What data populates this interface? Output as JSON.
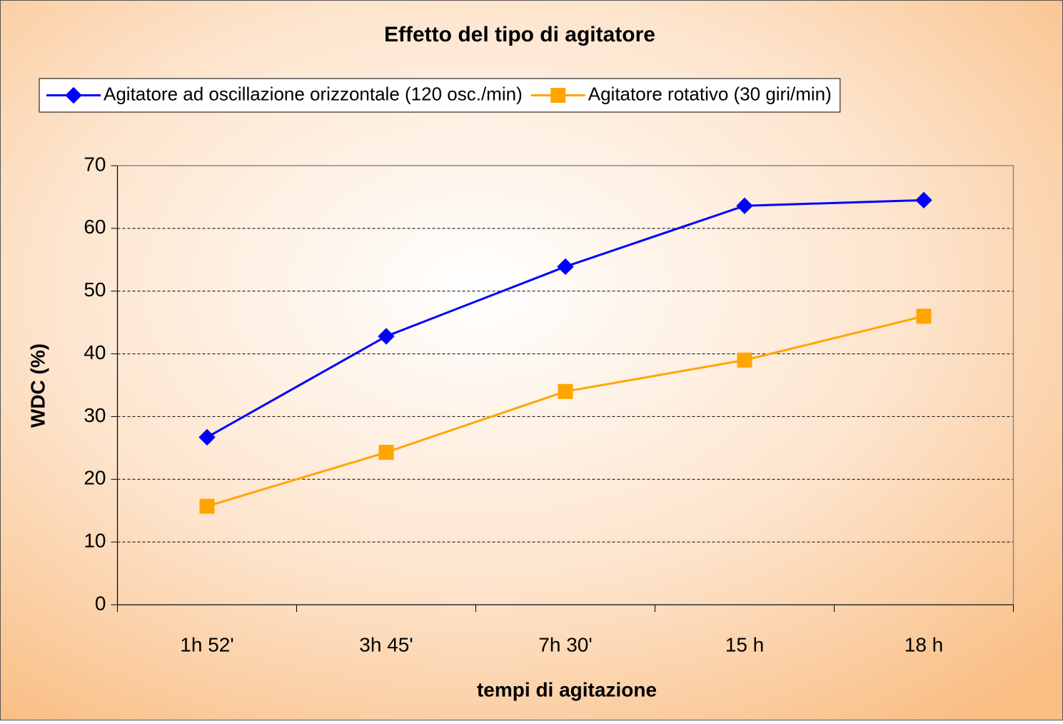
{
  "chart_data": {
    "type": "line",
    "title": "Effetto del tipo di agitatore",
    "xlabel": "tempi di agitazione",
    "ylabel": "WDC (%)",
    "categories": [
      "1h 52'",
      "3h 45'",
      "7h 30'",
      "15 h",
      "18 h"
    ],
    "series": [
      {
        "name": "Agitatore ad oscillazione orizzontale (120 osc./min)",
        "color": "#0000ff",
        "marker": "diamond",
        "values": [
          26.7,
          42.8,
          53.9,
          63.6,
          64.5
        ]
      },
      {
        "name": "Agitatore rotativo (30 giri/min)",
        "color": "#ffa500",
        "marker": "square",
        "values": [
          15.7,
          24.3,
          34.0,
          39.0,
          46.0
        ]
      }
    ],
    "ylim": [
      0,
      70
    ],
    "yticks": [
      0,
      10,
      20,
      30,
      40,
      50,
      60,
      70
    ],
    "grid": true,
    "legend": "top"
  }
}
